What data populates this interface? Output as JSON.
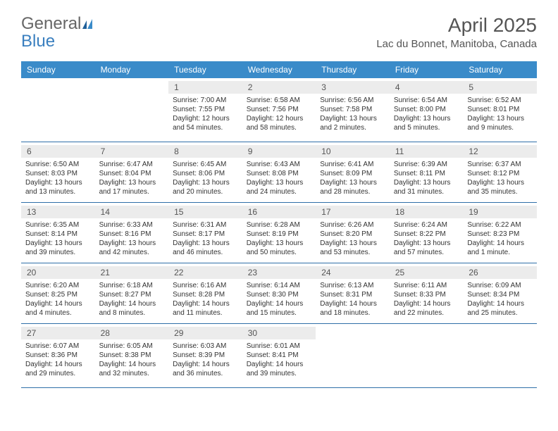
{
  "logo": {
    "part1": "General",
    "part2": "Blue"
  },
  "title": "April 2025",
  "location": "Lac du Bonnet, Manitoba, Canada",
  "colors": {
    "header_bg": "#3a8bc9",
    "header_text": "#ffffff",
    "border": "#2f6fa8",
    "daynum_bg": "#ececec",
    "text": "#333333",
    "title_text": "#555555",
    "logo_blue": "#3a7fbf"
  },
  "weekdays": [
    "Sunday",
    "Monday",
    "Tuesday",
    "Wednesday",
    "Thursday",
    "Friday",
    "Saturday"
  ],
  "weeks": [
    [
      null,
      null,
      {
        "n": "1",
        "sunrise": "7:00 AM",
        "sunset": "7:55 PM",
        "daylight": "12 hours and 54 minutes."
      },
      {
        "n": "2",
        "sunrise": "6:58 AM",
        "sunset": "7:56 PM",
        "daylight": "12 hours and 58 minutes."
      },
      {
        "n": "3",
        "sunrise": "6:56 AM",
        "sunset": "7:58 PM",
        "daylight": "13 hours and 2 minutes."
      },
      {
        "n": "4",
        "sunrise": "6:54 AM",
        "sunset": "8:00 PM",
        "daylight": "13 hours and 5 minutes."
      },
      {
        "n": "5",
        "sunrise": "6:52 AM",
        "sunset": "8:01 PM",
        "daylight": "13 hours and 9 minutes."
      }
    ],
    [
      {
        "n": "6",
        "sunrise": "6:50 AM",
        "sunset": "8:03 PM",
        "daylight": "13 hours and 13 minutes."
      },
      {
        "n": "7",
        "sunrise": "6:47 AM",
        "sunset": "8:04 PM",
        "daylight": "13 hours and 17 minutes."
      },
      {
        "n": "8",
        "sunrise": "6:45 AM",
        "sunset": "8:06 PM",
        "daylight": "13 hours and 20 minutes."
      },
      {
        "n": "9",
        "sunrise": "6:43 AM",
        "sunset": "8:08 PM",
        "daylight": "13 hours and 24 minutes."
      },
      {
        "n": "10",
        "sunrise": "6:41 AM",
        "sunset": "8:09 PM",
        "daylight": "13 hours and 28 minutes."
      },
      {
        "n": "11",
        "sunrise": "6:39 AM",
        "sunset": "8:11 PM",
        "daylight": "13 hours and 31 minutes."
      },
      {
        "n": "12",
        "sunrise": "6:37 AM",
        "sunset": "8:12 PM",
        "daylight": "13 hours and 35 minutes."
      }
    ],
    [
      {
        "n": "13",
        "sunrise": "6:35 AM",
        "sunset": "8:14 PM",
        "daylight": "13 hours and 39 minutes."
      },
      {
        "n": "14",
        "sunrise": "6:33 AM",
        "sunset": "8:16 PM",
        "daylight": "13 hours and 42 minutes."
      },
      {
        "n": "15",
        "sunrise": "6:31 AM",
        "sunset": "8:17 PM",
        "daylight": "13 hours and 46 minutes."
      },
      {
        "n": "16",
        "sunrise": "6:28 AM",
        "sunset": "8:19 PM",
        "daylight": "13 hours and 50 minutes."
      },
      {
        "n": "17",
        "sunrise": "6:26 AM",
        "sunset": "8:20 PM",
        "daylight": "13 hours and 53 minutes."
      },
      {
        "n": "18",
        "sunrise": "6:24 AM",
        "sunset": "8:22 PM",
        "daylight": "13 hours and 57 minutes."
      },
      {
        "n": "19",
        "sunrise": "6:22 AM",
        "sunset": "8:23 PM",
        "daylight": "14 hours and 1 minute."
      }
    ],
    [
      {
        "n": "20",
        "sunrise": "6:20 AM",
        "sunset": "8:25 PM",
        "daylight": "14 hours and 4 minutes."
      },
      {
        "n": "21",
        "sunrise": "6:18 AM",
        "sunset": "8:27 PM",
        "daylight": "14 hours and 8 minutes."
      },
      {
        "n": "22",
        "sunrise": "6:16 AM",
        "sunset": "8:28 PM",
        "daylight": "14 hours and 11 minutes."
      },
      {
        "n": "23",
        "sunrise": "6:14 AM",
        "sunset": "8:30 PM",
        "daylight": "14 hours and 15 minutes."
      },
      {
        "n": "24",
        "sunrise": "6:13 AM",
        "sunset": "8:31 PM",
        "daylight": "14 hours and 18 minutes."
      },
      {
        "n": "25",
        "sunrise": "6:11 AM",
        "sunset": "8:33 PM",
        "daylight": "14 hours and 22 minutes."
      },
      {
        "n": "26",
        "sunrise": "6:09 AM",
        "sunset": "8:34 PM",
        "daylight": "14 hours and 25 minutes."
      }
    ],
    [
      {
        "n": "27",
        "sunrise": "6:07 AM",
        "sunset": "8:36 PM",
        "daylight": "14 hours and 29 minutes."
      },
      {
        "n": "28",
        "sunrise": "6:05 AM",
        "sunset": "8:38 PM",
        "daylight": "14 hours and 32 minutes."
      },
      {
        "n": "29",
        "sunrise": "6:03 AM",
        "sunset": "8:39 PM",
        "daylight": "14 hours and 36 minutes."
      },
      {
        "n": "30",
        "sunrise": "6:01 AM",
        "sunset": "8:41 PM",
        "daylight": "14 hours and 39 minutes."
      },
      null,
      null,
      null
    ]
  ]
}
